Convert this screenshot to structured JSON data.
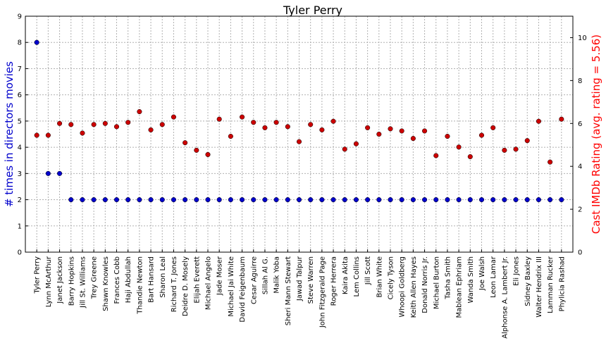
{
  "chart_data": {
    "type": "scatter",
    "title": "Tyler Perry",
    "ylabel_left": "# times in directors movies",
    "ylabel_right": "Cast IMDb Rating (avg. rating = 5.56)",
    "ylim_left": [
      0,
      9
    ],
    "ylim_right": [
      0,
      11
    ],
    "yticks_left": [
      0,
      1,
      2,
      3,
      4,
      5,
      6,
      7,
      8,
      9
    ],
    "yticks_right": [
      0,
      2,
      4,
      6,
      8,
      10
    ],
    "grid": true,
    "colors": {
      "count": "#0000cc",
      "rating": "#cc0000",
      "left_label": "#0000cc",
      "right_label": "#ff0000"
    },
    "categories": [
      "Tyler Perry",
      "Lynn McArthur",
      "Janet Jackson",
      "Barry Hopkins",
      "Jill St. Williams",
      "Trey Greene",
      "Shawn Knowles",
      "Frances Cobb",
      "Haji Abdullah",
      "Thandie Newton",
      "Bart Hansard",
      "Sharon Leal",
      "Richard T. Jones",
      "Deidre D. Mosely",
      "Elijah Everett",
      "Michael Angelo",
      "Jade Moser",
      "Michael Jai White",
      "David Feigenbaum",
      "Cesar Aguirre",
      "Sillah Al G.",
      "Malik Yoba",
      "Sheri Mann Stewart",
      "Jawad Talpur",
      "Steve Warren",
      "John Fitzgerald Page",
      "Roger Herrera",
      "Kaira Akita",
      "Lem Collins",
      "Jill Scott",
      "Brian White",
      "Cicely Tyson",
      "Whoopi Goldberg",
      "Keith Allen Hayes",
      "Donald Norris Jr.",
      "Michael Burton",
      "Tasha Smith",
      "Mablean Ephriam",
      "Wanda Smith",
      "Joe Walsh",
      "Leon Lamar",
      "Alphonse A. Lambert Jr.",
      "Eli Jones",
      "Sidney Baxley",
      "Walter Hendrix III",
      "Lamman Rucker",
      "Phylicia Rashad"
    ],
    "series": [
      {
        "axis": "left",
        "values": [
          8,
          3,
          3,
          2,
          2,
          2,
          2,
          2,
          2,
          2,
          2,
          2,
          2,
          2,
          2,
          2,
          2,
          2,
          2,
          2,
          2,
          2,
          2,
          2,
          2,
          2,
          2,
          2,
          2,
          2,
          2,
          2,
          2,
          2,
          2,
          2,
          2,
          2,
          2,
          2,
          2,
          2,
          2,
          2,
          2,
          2,
          2
        ]
      },
      {
        "axis": "right",
        "values": [
          5.45,
          5.45,
          6.0,
          5.95,
          5.55,
          5.95,
          6.0,
          5.85,
          6.05,
          6.55,
          5.7,
          5.95,
          6.3,
          5.1,
          4.75,
          4.55,
          6.2,
          5.4,
          6.3,
          6.05,
          5.8,
          6.05,
          5.85,
          5.15,
          5.95,
          5.7,
          6.1,
          4.8,
          5.05,
          5.8,
          5.5,
          5.75,
          5.65,
          5.3,
          5.65,
          4.5,
          5.4,
          4.9,
          4.45,
          5.45,
          5.8,
          4.75,
          4.8,
          5.2,
          6.1,
          4.2,
          6.2
        ]
      }
    ]
  }
}
